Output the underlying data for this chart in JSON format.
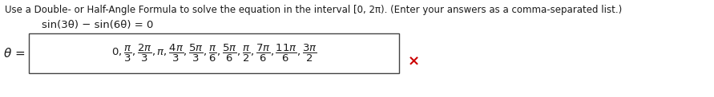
{
  "line1": "Use a Double- or Half-Angle Formula to solve the equation in the interval [0, 2π). (Enter your answers as a comma-separated list.)",
  "line2": "sin(3θ) − sin(6θ) = 0",
  "bg_color": "#ffffff",
  "text_color": "#1a1a1a",
  "box_color": "#444444",
  "x_color": "#cc0000",
  "font_size_line1": 8.5,
  "font_size_line2": 9.5,
  "font_size_theta": 11,
  "font_size_answer": 9.5,
  "font_size_x": 13
}
